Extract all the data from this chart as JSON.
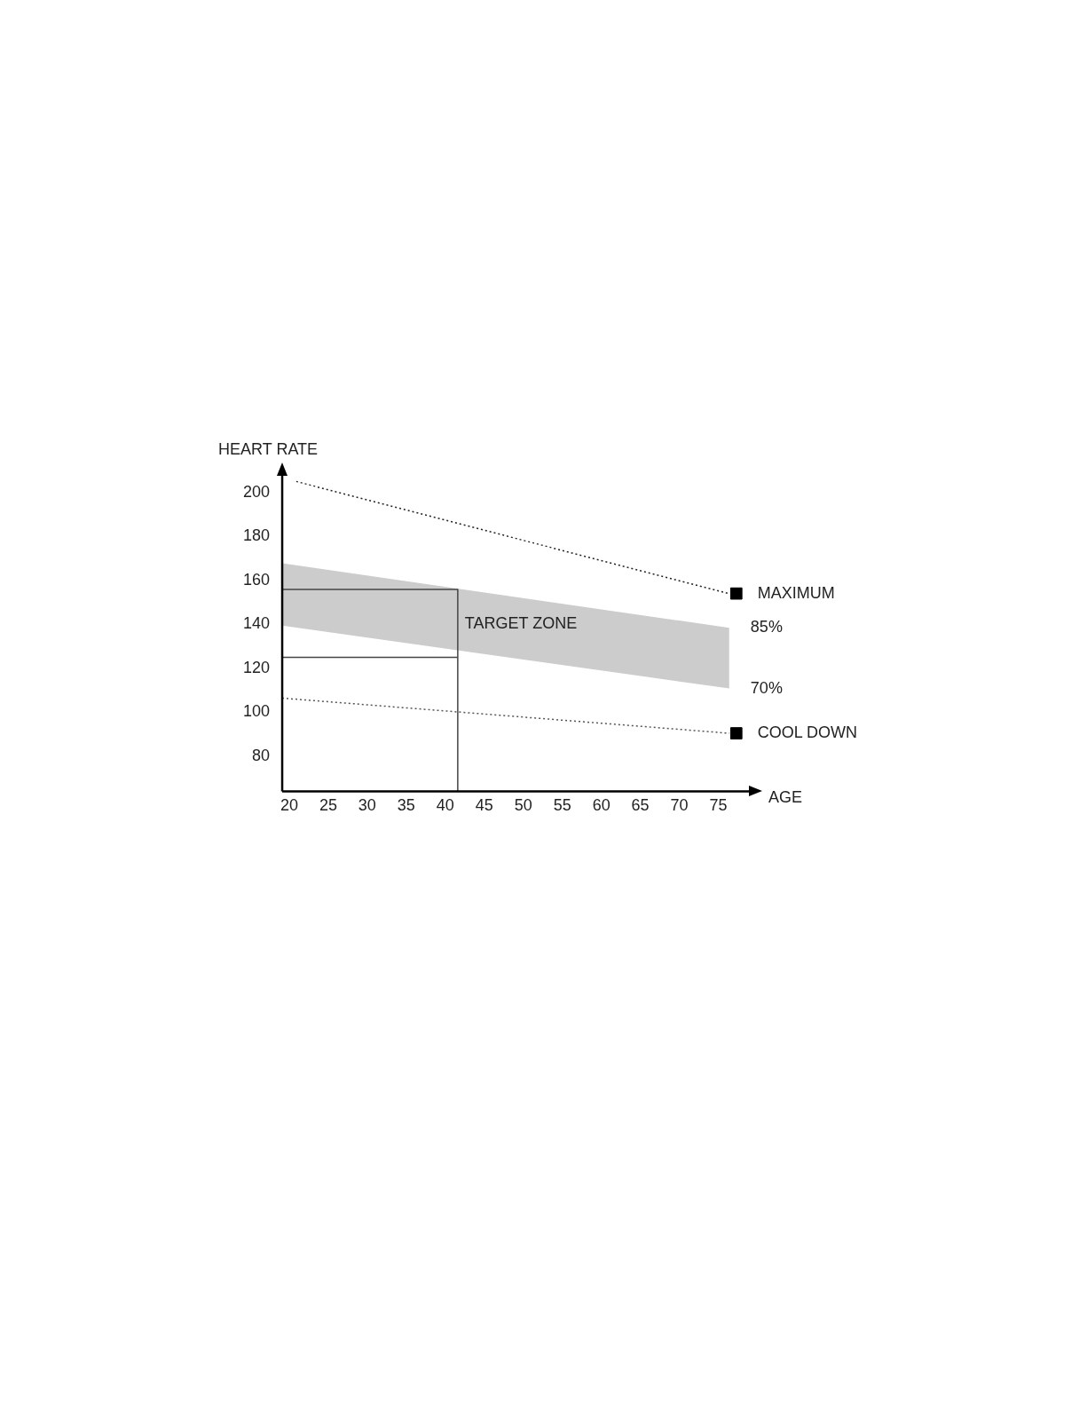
{
  "chart_data": {
    "type": "line",
    "xlabel": "AGE",
    "ylabel": "HEART RATE",
    "xlim": [
      19.1,
      79.6
    ],
    "ylim": [
      64,
      210
    ],
    "xticks": [
      20,
      25,
      30,
      35,
      40,
      45,
      50,
      55,
      60,
      65,
      70,
      75
    ],
    "yticks": [
      80,
      100,
      120,
      140,
      160,
      180,
      200
    ],
    "grid": false,
    "legend": false,
    "series": [
      {
        "type": "area",
        "color": "#cccccc",
        "x": [
          19.1,
          76.4
        ],
        "values": [
          null,
          null
        ],
        "upper": [
          167.8,
          138.4
        ],
        "lower": [
          139.4,
          110.8
        ]
      },
      {
        "type": "line",
        "color": "#222222",
        "line_style": "dotted",
        "marker": "none",
        "x": [
          20.9,
          76.4
        ],
        "values": [
          205,
          153.9
        ]
      },
      {
        "type": "line",
        "color": "#555555",
        "line_style": "dotted",
        "marker": "none",
        "x": [
          19.1,
          76.4
        ],
        "values": [
          106.4,
          90.4
        ]
      },
      {
        "type": "line",
        "color": "#444444",
        "line_style": "solid",
        "marker": "none",
        "x": [
          19.1,
          41.6,
          41.6
        ],
        "values": [
          155.9,
          155.9,
          64
        ]
      },
      {
        "type": "line",
        "color": "#444444",
        "line_style": "solid",
        "marker": "none",
        "x": [
          19.1,
          41.6
        ],
        "values": [
          125,
          125
        ]
      },
      {
        "type": "scatter",
        "color": "#000000",
        "marker": "square",
        "x": [
          77.3,
          77.3
        ],
        "values": [
          154,
          90.4
        ]
      }
    ],
    "annotations": [
      {
        "text": "TARGET ZONE",
        "x": 41.6,
        "y": 140
      },
      {
        "text": "MAXIMUM",
        "x": 77.3,
        "y": 154
      },
      {
        "text": "85%",
        "x": 76.4,
        "y": 138.4
      },
      {
        "text": "70%",
        "x": 76.4,
        "y": 110.8
      },
      {
        "text": "COOL DOWN",
        "x": 77.3,
        "y": 90.4
      }
    ]
  }
}
